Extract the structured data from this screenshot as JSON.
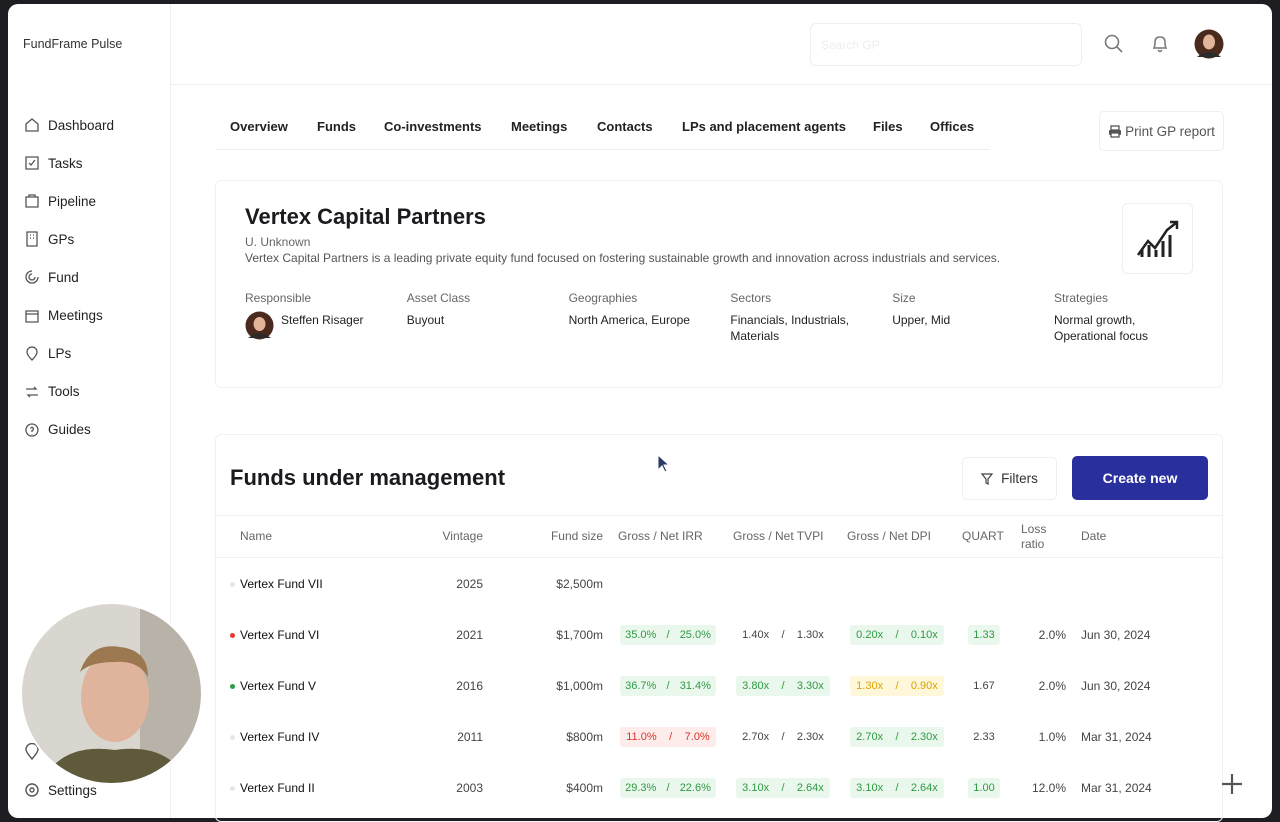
{
  "app": {
    "name": "FundFrame Pulse",
    "search_placeholder": "Search GP"
  },
  "sidebar": {
    "items": [
      "Dashboard",
      "Tasks",
      "Pipeline",
      "GPs",
      "Fund",
      "Meetings",
      "LPs",
      "Tools",
      "Guides"
    ],
    "settings": "Settings"
  },
  "tabs": [
    "Overview",
    "Funds",
    "Co-investments",
    "Meetings",
    "Contacts",
    "LPs and placement agents",
    "Files",
    "Offices"
  ],
  "print_button": "Print GP report",
  "gp": {
    "name": "Vertex Capital Partners",
    "subtitle": "U. Unknown",
    "description": "Vertex Capital Partners is a leading private equity fund focused on fostering sustainable growth and innovation across industrials and services.",
    "fields": [
      {
        "label": "Responsible",
        "value": "Steffen Risager"
      },
      {
        "label": "Asset Class",
        "value": "Buyout"
      },
      {
        "label": "Geographies",
        "value": "North America, Europe"
      },
      {
        "label": "Sectors",
        "value": "Financials, Industrials, Materials"
      },
      {
        "label": "Size",
        "value": "Upper, Mid"
      },
      {
        "label": "Strategies",
        "value": "Normal growth, Operational focus"
      }
    ]
  },
  "funds": {
    "title": "Funds under management",
    "filters": "Filters",
    "create": "Create new",
    "separator": "/",
    "tones": {
      "green": {
        "text": "#2f9a44",
        "bg": "#eaf7ed"
      },
      "red": {
        "text": "#d8352c",
        "bg": "#fdecea"
      },
      "yellow": {
        "text": "#d9a400",
        "bg": "#fff7d9"
      }
    },
    "columns": [
      "Name",
      "Vintage",
      "Fund size",
      "Gross / Net IRR",
      "Gross / Net TVPI",
      "Gross / Net DPI",
      "QUART",
      "Loss ratio",
      "Date"
    ],
    "rows": [
      {
        "name": "Vertex Fund VII",
        "dot": "#e6e6e6",
        "vintage": "2025",
        "size": "$2,500m"
      },
      {
        "name": "Vertex Fund VI",
        "dot": "#e53935",
        "vintage": "2021",
        "size": "$1,700m",
        "irr": [
          "35.0%",
          "25.0%"
        ],
        "irr_tone": "green",
        "tvpi": [
          "1.40x",
          "1.30x"
        ],
        "dpi": [
          "0.20x",
          "0.10x"
        ],
        "dpi_tone": "green",
        "quart": "1.33",
        "quart_tone": "green",
        "loss": "2.0%",
        "date": "Jun 30, 2024"
      },
      {
        "name": "Vertex Fund V",
        "dot": "#2e9a44",
        "vintage": "2016",
        "size": "$1,000m",
        "irr": [
          "36.7%",
          "31.4%"
        ],
        "irr_tone": "green",
        "tvpi": [
          "3.80x",
          "3.30x"
        ],
        "tvpi_tone": "green",
        "dpi": [
          "1.30x",
          "0.90x"
        ],
        "dpi_tone": "yellow",
        "quart": "1.67",
        "loss": "2.0%",
        "date": "Jun 30, 2024"
      },
      {
        "name": "Vertex Fund IV",
        "dot": "#e6e6e6",
        "vintage": "2011",
        "size": "$800m",
        "irr": [
          "11.0%",
          "7.0%"
        ],
        "irr_tone": "red",
        "tvpi": [
          "2.70x",
          "2.30x"
        ],
        "dpi": [
          "2.70x",
          "2.30x"
        ],
        "dpi_tone": "green",
        "quart": "2.33",
        "loss": "1.0%",
        "date": "Mar 31, 2024"
      },
      {
        "name": "Vertex Fund II",
        "dot": "#e6e6e6",
        "vintage": "2003",
        "size": "$400m",
        "irr": [
          "29.3%",
          "22.6%"
        ],
        "irr_tone": "green",
        "tvpi": [
          "3.10x",
          "2.64x"
        ],
        "tvpi_tone": "green",
        "dpi": [
          "3.10x",
          "2.64x"
        ],
        "dpi_tone": "green",
        "quart": "1.00",
        "quart_tone": "green",
        "loss": "12.0%",
        "date": "Mar 31, 2024"
      }
    ]
  }
}
